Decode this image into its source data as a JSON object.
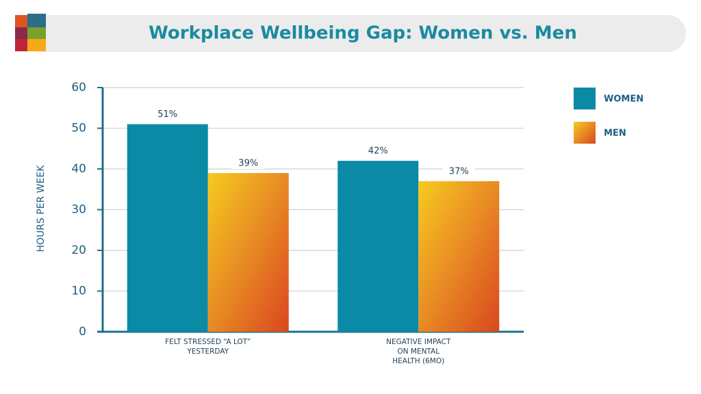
{
  "chart_data": {
    "type": "bar",
    "title": "Workplace Wellbeing Gap: Women vs. Men",
    "y_label": "HOURS PER WEEK",
    "categories": [
      "FELT STRESSED “A LOT”\nYESTERDAY",
      "NEGATIVE IMPACT\nON MENTAL\nHEALTH (6MO)"
    ],
    "series": [
      {
        "name": "WOMEN",
        "color": "#0b8aa6",
        "values": [
          51,
          42
        ],
        "value_labels": [
          "51%",
          "42%"
        ]
      },
      {
        "name": "MEN",
        "color": "#e88a24",
        "values": [
          39,
          37
        ],
        "value_labels": [
          "39%",
          "37%"
        ]
      }
    ],
    "ylim": [
      0,
      60
    ],
    "yticks": [
      0,
      10,
      20,
      30,
      40,
      50,
      60
    ],
    "grid": true,
    "legend": "right"
  }
}
